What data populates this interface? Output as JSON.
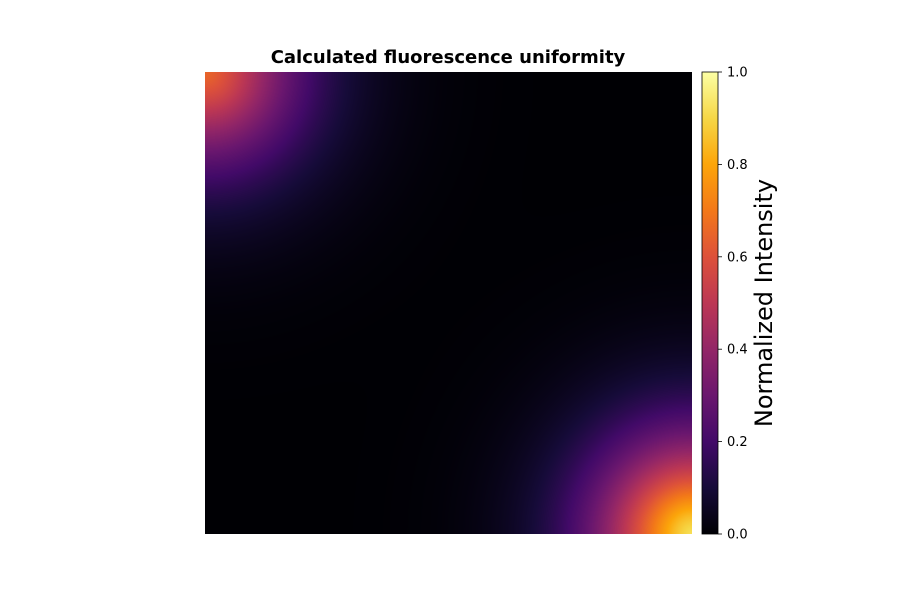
{
  "chart_data": {
    "type": "heatmap",
    "title": "Calculated fluorescence uniformity",
    "xlabel": "",
    "ylabel": "",
    "axes_visible": false,
    "colormap": "inferno",
    "grid": false,
    "colorbar": {
      "label": "Normalized Intensity",
      "range": [
        0,
        1
      ],
      "ticks": [
        0.0,
        0.2,
        0.4,
        0.6,
        0.8,
        1.0
      ],
      "tick_labels": [
        "0.0",
        "0.2",
        "0.4",
        "0.6",
        "0.8",
        "1.0"
      ],
      "placement": "right"
    },
    "hotspots": [
      {
        "corner": "top-left",
        "peak_value": 0.65
      },
      {
        "corner": "bottom-right",
        "peak_value": 0.92
      }
    ],
    "background_value": 0.0
  }
}
